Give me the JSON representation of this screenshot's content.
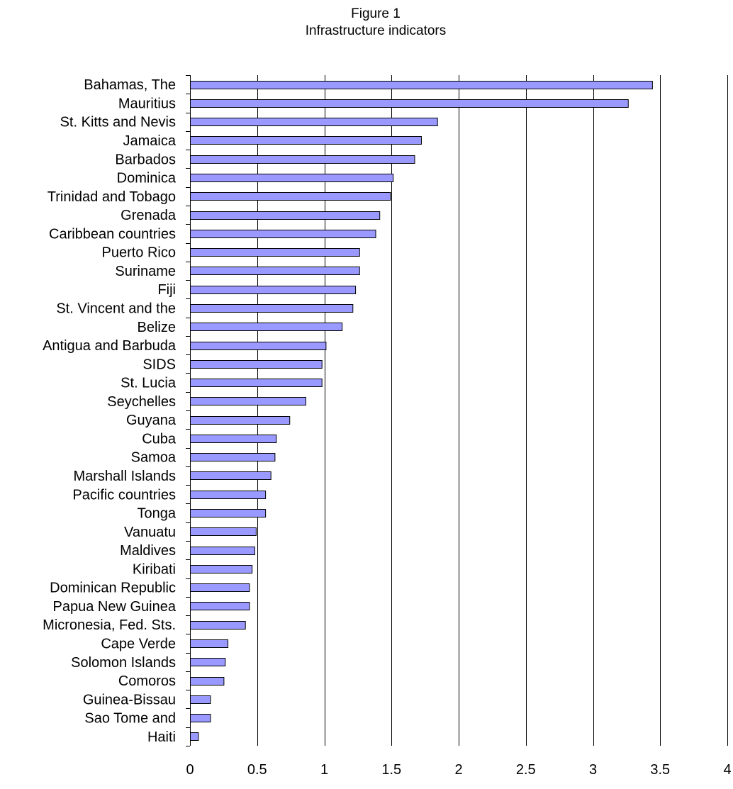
{
  "chart_data": {
    "type": "bar",
    "orientation": "horizontal",
    "title": "Figure 1",
    "subtitle": "Infrastructure indicators",
    "categories": [
      "Bahamas, The",
      "Mauritius",
      "St. Kitts and Nevis",
      "Jamaica",
      "Barbados",
      "Dominica",
      "Trinidad and Tobago",
      "Grenada",
      "Caribbean countries",
      "Puerto Rico",
      "Suriname",
      "Fiji",
      "St. Vincent and the",
      "Belize",
      "Antigua and Barbuda",
      "SIDS",
      "St. Lucia",
      "Seychelles",
      "Guyana",
      "Cuba",
      "Samoa",
      "Marshall Islands",
      "Pacific countries",
      "Tonga",
      "Vanuatu",
      "Maldives",
      "Kiribati",
      "Dominican Republic",
      "Papua New Guinea",
      "Micronesia, Fed. Sts.",
      "Cape Verde",
      "Solomon Islands",
      "Comoros",
      "Guinea-Bissau",
      "Sao Tome and",
      "Haiti"
    ],
    "values": [
      3.44,
      3.26,
      1.84,
      1.72,
      1.67,
      1.51,
      1.49,
      1.41,
      1.38,
      1.26,
      1.26,
      1.23,
      1.21,
      1.13,
      1.01,
      0.98,
      0.98,
      0.86,
      0.74,
      0.64,
      0.63,
      0.6,
      0.56,
      0.56,
      0.49,
      0.48,
      0.46,
      0.44,
      0.44,
      0.41,
      0.28,
      0.26,
      0.25,
      0.15,
      0.15,
      0.06
    ],
    "xticks": [
      "0",
      "0.5",
      "1",
      "1.5",
      "2",
      "2.5",
      "3",
      "3.5",
      "4"
    ],
    "xlim": [
      0,
      4
    ],
    "grid": "vertical",
    "bar_color": "#9999ff",
    "bar_border_color": "#000000",
    "gridline_color": "#000000"
  }
}
